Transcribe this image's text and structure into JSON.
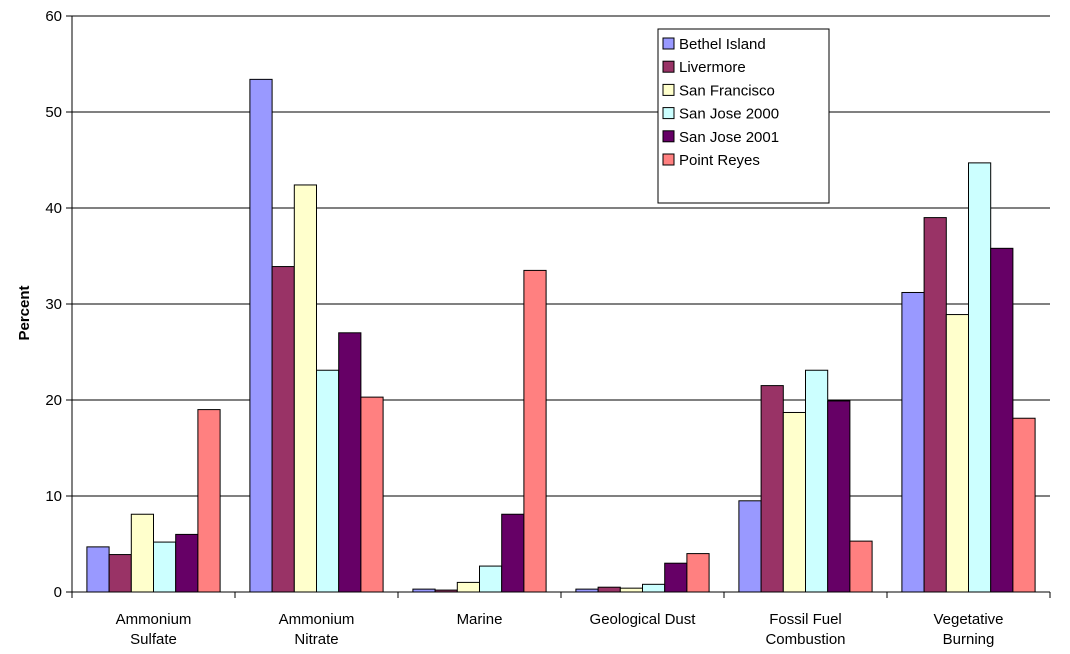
{
  "chart_data": {
    "type": "bar",
    "title": "",
    "xlabel": "",
    "ylabel": "Percent",
    "ylim": [
      0,
      60
    ],
    "yticks": [
      0,
      10,
      20,
      30,
      40,
      50,
      60
    ],
    "grid": true,
    "legend_position": "top-right",
    "categories": [
      [
        "Ammonium",
        "Sulfate"
      ],
      [
        "Ammonium",
        "Nitrate"
      ],
      [
        "Marine"
      ],
      [
        "Geological Dust"
      ],
      [
        "Fossil Fuel",
        "Combustion"
      ],
      [
        "Vegetative",
        "Burning"
      ]
    ],
    "series": [
      {
        "name": "Bethel Island",
        "color": "#9999ff",
        "values": [
          4.7,
          53.4,
          0.3,
          0.3,
          9.5,
          31.2
        ]
      },
      {
        "name": "Livermore",
        "color": "#993366",
        "values": [
          3.9,
          33.9,
          0.2,
          0.5,
          21.5,
          39.0
        ]
      },
      {
        "name": "San Francisco",
        "color": "#ffffcc",
        "values": [
          8.1,
          42.4,
          1.0,
          0.4,
          18.7,
          28.9
        ]
      },
      {
        "name": "San Jose 2000",
        "color": "#ccffff",
        "values": [
          5.2,
          23.1,
          2.7,
          0.8,
          23.1,
          44.7
        ]
      },
      {
        "name": "San Jose 2001",
        "color": "#660066",
        "values": [
          6.0,
          27.0,
          8.1,
          3.0,
          19.9,
          35.8
        ]
      },
      {
        "name": "Point Reyes",
        "color": "#ff8080",
        "values": [
          19.0,
          20.3,
          33.5,
          4.0,
          5.3,
          18.1
        ]
      }
    ]
  }
}
